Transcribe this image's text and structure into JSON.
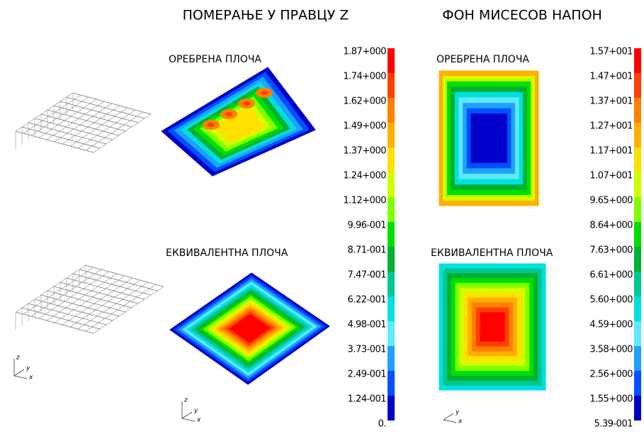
{
  "headings": [
    "ПОМЕРАЊЕ У ПРАВЦУ Z",
    "ФОН МИСЕСОВ НАПОН"
  ],
  "panels": [
    {
      "label": "ОРЕБРЕНА ПЛОЧА"
    },
    {
      "label": "ЕКВИВАЛЕНТНА ПЛОЧА"
    },
    {
      "label": "ОРЕБРЕНА ПЛОЧА"
    },
    {
      "label": "ЕКВИВАЛЕНТНА ПЛОЧА"
    }
  ],
  "legends": [
    {
      "labels": [
        "1.87+000",
        "1.74+000",
        "1.62+000",
        "1.49+000",
        "1.37+000",
        "1.24+000",
        "1.12+000",
        "9.96-001",
        "8.71-001",
        "7.47-001",
        "6.22-001",
        "4.98-001",
        "3.73-001",
        "2.49-001",
        "1.24-001",
        "0."
      ]
    },
    {
      "labels": [
        "1.57+001",
        "1.47+001",
        "1.37+001",
        "1.27+001",
        "1.17+001",
        "1.07+001",
        "9.65+000",
        "8.64+000",
        "7.63+000",
        "6.61+000",
        "5.60+000",
        "4.59+000",
        "3.58+000",
        "2.56+000",
        "1.55+000",
        "5.39-001"
      ]
    }
  ],
  "triads": [
    [
      "z",
      "y",
      "x"
    ],
    [
      "z",
      "y",
      "x"
    ],
    [
      "y",
      "x"
    ]
  ]
}
